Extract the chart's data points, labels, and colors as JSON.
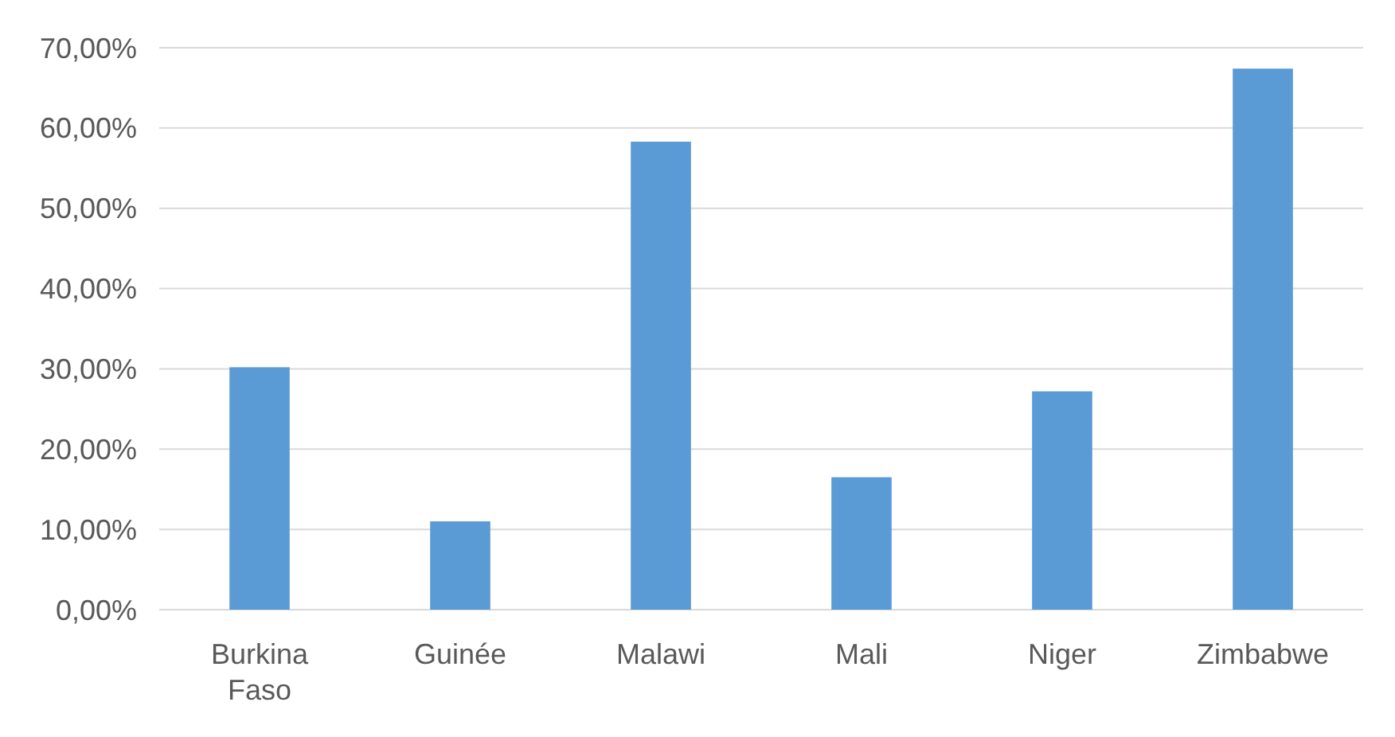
{
  "chart_data": {
    "type": "bar",
    "categories": [
      "Burkina Faso",
      "Guinée",
      "Malawi",
      "Mali",
      "Niger",
      "Zimbabwe"
    ],
    "values": [
      30.2,
      11,
      58.3,
      16.5,
      27.2,
      67.4
    ],
    "color": "#5b9bd5",
    "ylim": [
      0,
      70
    ],
    "yticks": [
      {
        "value": 0,
        "label": "0,00%"
      },
      {
        "value": 10,
        "label": "10,00%"
      },
      {
        "value": 20,
        "label": "20,00%"
      },
      {
        "value": 30,
        "label": "30,00%"
      },
      {
        "value": 40,
        "label": "40,00%"
      },
      {
        "value": 50,
        "label": "50,00%"
      },
      {
        "value": 60,
        "label": "60,00%"
      },
      {
        "value": 70,
        "label": "70,00%"
      }
    ],
    "grid": true
  }
}
